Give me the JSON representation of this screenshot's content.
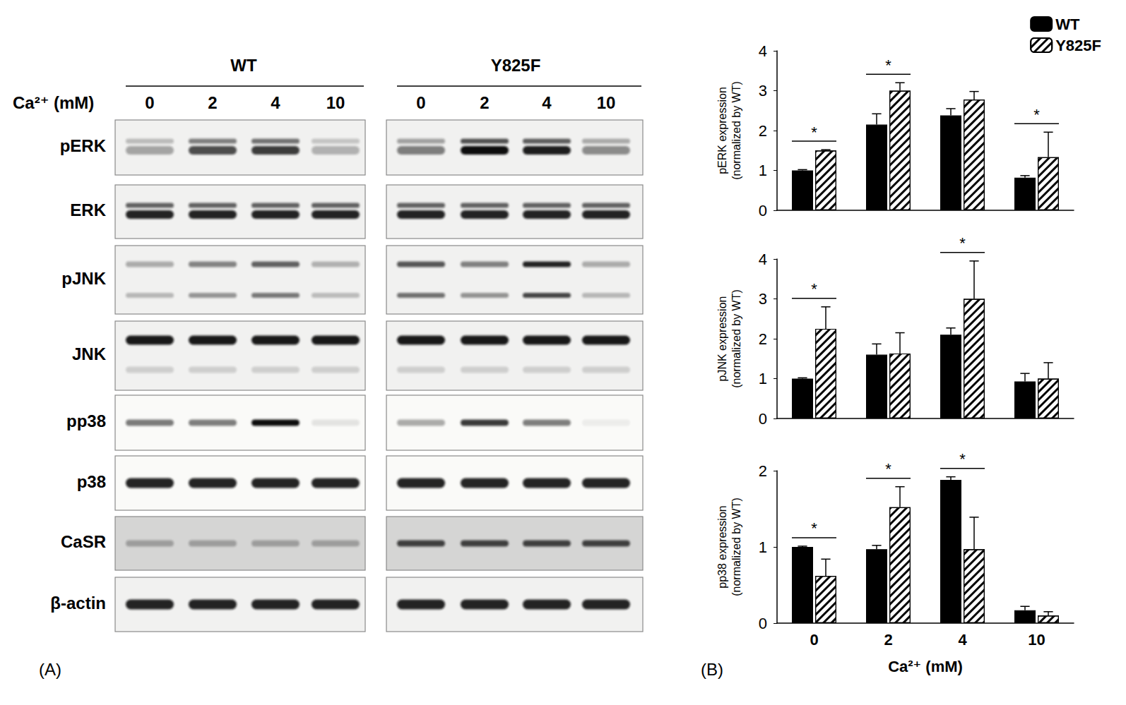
{
  "panel_labels": [
    "(A)",
    "(B)"
  ],
  "blot": {
    "ca_label": "Ca²⁺ (mM)",
    "groups": [
      {
        "name": "WT",
        "lanes": [
          "0",
          "2",
          "4",
          "10"
        ]
      },
      {
        "name": "Y825F",
        "lanes": [
          "0",
          "2",
          "4",
          "10"
        ]
      }
    ],
    "rows": [
      "pERK",
      "ERK",
      "pJNK",
      "JNK",
      "pp38",
      "p38",
      "CaSR",
      "β-actin"
    ]
  },
  "chart_data": [
    {
      "type": "bar",
      "y_label": "pERK expression\n(normalized by WT)",
      "categories": [
        "0",
        "2",
        "4",
        "10"
      ],
      "series": [
        {
          "name": "WT",
          "color": "#000000",
          "values": [
            1.0,
            2.15,
            2.38,
            0.82
          ],
          "errors": [
            0.02,
            0.27,
            0.17,
            0.05
          ]
        },
        {
          "name": "Y825F",
          "color": "#ffffff",
          "marker": "hatch",
          "values": [
            1.5,
            3.0,
            2.78,
            1.33
          ],
          "errors": [
            0.02,
            0.2,
            0.2,
            0.63
          ]
        }
      ],
      "ylim": [
        0,
        4
      ],
      "yticks": [
        0,
        1,
        2,
        3,
        4
      ],
      "annotations": [
        {
          "category": "0",
          "text": "*"
        },
        {
          "category": "2",
          "text": "*"
        },
        {
          "category": "10",
          "text": "*"
        }
      ],
      "legend": "upper right",
      "tick_labels": "y",
      "grid": false
    },
    {
      "type": "bar",
      "y_label": "pJNK expression\n(normalized by WT)",
      "categories": [
        "0",
        "2",
        "4",
        "10"
      ],
      "series": [
        {
          "name": "WT",
          "color": "#000000",
          "values": [
            1.0,
            1.6,
            2.1,
            0.93
          ],
          "errors": [
            0.02,
            0.27,
            0.17,
            0.2
          ]
        },
        {
          "name": "Y825F",
          "color": "#ffffff",
          "marker": "hatch",
          "values": [
            2.25,
            1.63,
            3.0,
            1.0
          ],
          "errors": [
            0.55,
            0.52,
            0.95,
            0.4
          ]
        }
      ],
      "ylim": [
        0,
        4
      ],
      "yticks": [
        0,
        1,
        2,
        3,
        4
      ],
      "annotations": [
        {
          "category": "0",
          "text": "*"
        },
        {
          "category": "4",
          "text": "*"
        }
      ],
      "tick_labels": "y",
      "grid": false
    },
    {
      "type": "bar",
      "y_label": "pp38 expression\n(normalized by WT)",
      "x_label": "Ca²⁺ (mM)",
      "categories": [
        "0",
        "2",
        "4",
        "10"
      ],
      "series": [
        {
          "name": "WT",
          "color": "#000000",
          "values": [
            1.0,
            0.97,
            1.88,
            0.17
          ],
          "errors": [
            0.01,
            0.05,
            0.04,
            0.05
          ]
        },
        {
          "name": "Y825F",
          "color": "#ffffff",
          "marker": "hatch",
          "values": [
            0.62,
            1.52,
            0.97,
            0.1
          ],
          "errors": [
            0.22,
            0.27,
            0.42,
            0.05
          ]
        }
      ],
      "ylim": [
        0,
        2
      ],
      "yticks": [
        0,
        1,
        2
      ],
      "annotations": [
        {
          "category": "0",
          "text": "*"
        },
        {
          "category": "2",
          "text": "*"
        },
        {
          "category": "4",
          "text": "*"
        }
      ],
      "grid": false
    }
  ]
}
